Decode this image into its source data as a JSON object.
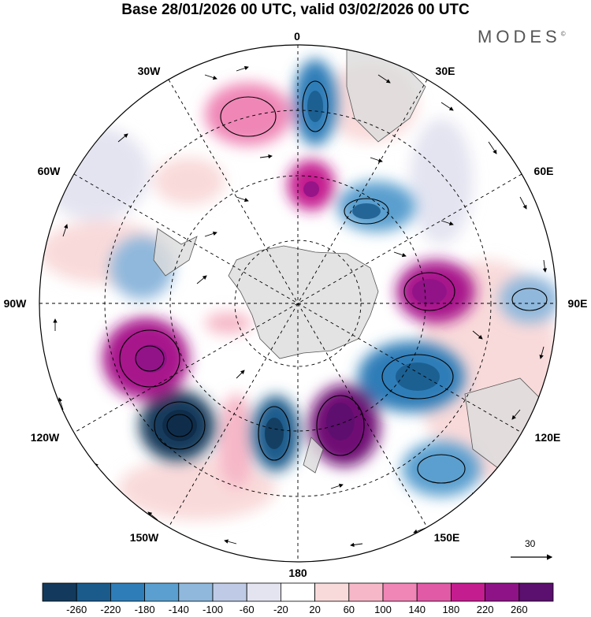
{
  "title": "Base 28/01/2026 00 UTC, valid 03/02/2026 00 UTC",
  "brand": "MODES",
  "brand_mark": "©",
  "longitude_labels": {
    "lon_0": "0",
    "lon_30e": "30E",
    "lon_60e": "60E",
    "lon_90e": "90E",
    "lon_120e": "120E",
    "lon_150e": "150E",
    "lon_180": "180",
    "lon_150w": "150W",
    "lon_120w": "120W",
    "lon_90w": "90W",
    "lon_60w": "60W",
    "lon_30w": "30W"
  },
  "reference_vector_label": "30",
  "colorbar": {
    "labels": [
      "-260",
      "-220",
      "-180",
      "-140",
      "-100",
      "-60",
      "-20",
      "20",
      "60",
      "100",
      "140",
      "180",
      "220",
      "260"
    ],
    "colors": [
      "#133a5c",
      "#1a5b8c",
      "#2f7db8",
      "#5a9fcf",
      "#8fb8dc",
      "#bfcbe6",
      "#e4e4f1",
      "#ffffff",
      "#f9dada",
      "#f6b8c8",
      "#ef86b6",
      "#e05aa6",
      "#c41d8f",
      "#8e1387",
      "#5b0f6e"
    ]
  },
  "anomalies": [
    {
      "name": "anomaly-negative-top",
      "value": -160,
      "color": "#2f7db8"
    },
    {
      "name": "anomaly-positive-top-left",
      "value": 120,
      "color": "#ef86b6"
    },
    {
      "name": "anomaly-positive-center-top",
      "value": 180,
      "color": "#c41d8f"
    },
    {
      "name": "anomaly-negative-upper-right",
      "value": -140,
      "color": "#5a9fcf"
    },
    {
      "name": "anomaly-positive-right",
      "value": 220,
      "color": "#a8198c"
    },
    {
      "name": "anomaly-negative-lower-right",
      "value": -180,
      "color": "#2f7db8"
    },
    {
      "name": "anomaly-positive-bottom-center",
      "value": 260,
      "color": "#6f1075"
    },
    {
      "name": "anomaly-negative-bottom-center",
      "value": -200,
      "color": "#1a5b8c"
    },
    {
      "name": "anomaly-negative-bottom-left",
      "value": -240,
      "color": "#133a5c"
    },
    {
      "name": "anomaly-positive-left",
      "value": 220,
      "color": "#a8198c"
    },
    {
      "name": "anomaly-negative-left",
      "value": -100,
      "color": "#8fb8dc"
    },
    {
      "name": "anomaly-negative-far-right",
      "value": -100,
      "color": "#8fb8dc"
    },
    {
      "name": "anomaly-negative-bottom-right",
      "value": -120,
      "color": "#5a9fcf"
    }
  ]
}
